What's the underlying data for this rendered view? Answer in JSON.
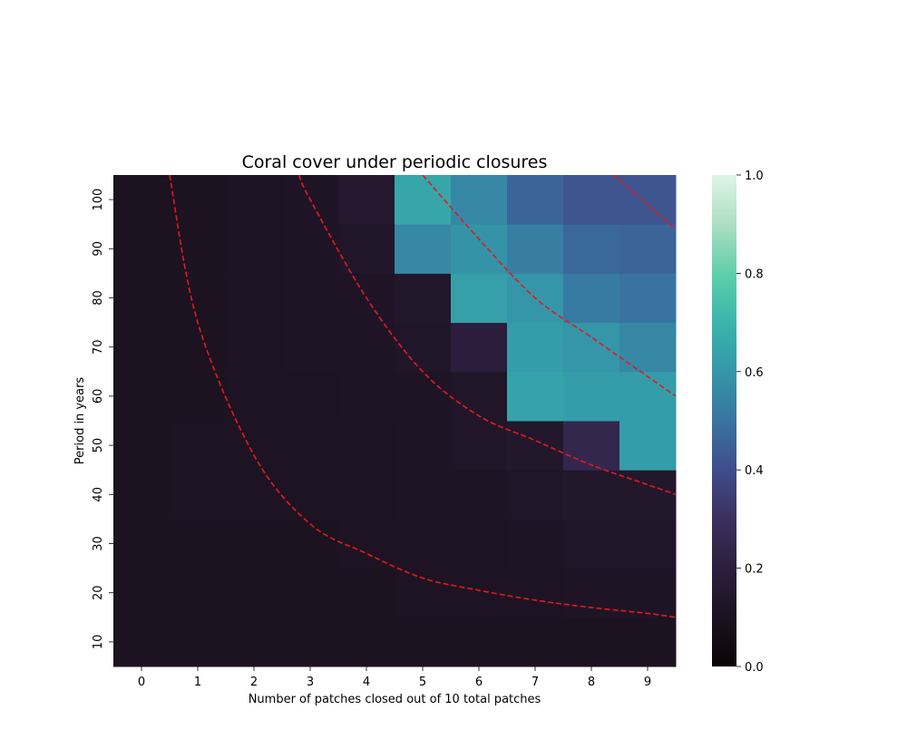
{
  "chart_data": {
    "type": "heatmap",
    "title": "Coral cover under periodic closures",
    "xlabel": "Number of patches closed out of 10 total patches",
    "ylabel": "Period in years",
    "x_categories": [
      "0",
      "1",
      "2",
      "3",
      "4",
      "5",
      "6",
      "7",
      "8",
      "9"
    ],
    "y_categories": [
      "10",
      "20",
      "30",
      "40",
      "50",
      "60",
      "70",
      "80",
      "90",
      "100"
    ],
    "values": [
      [
        0.1,
        0.1,
        0.1,
        0.1,
        0.1,
        0.1,
        0.1,
        0.1,
        0.1,
        0.1
      ],
      [
        0.1,
        0.1,
        0.1,
        0.1,
        0.1,
        0.11,
        0.11,
        0.11,
        0.12,
        0.12
      ],
      [
        0.1,
        0.1,
        0.1,
        0.1,
        0.11,
        0.11,
        0.11,
        0.12,
        0.13,
        0.13
      ],
      [
        0.1,
        0.11,
        0.11,
        0.11,
        0.11,
        0.12,
        0.12,
        0.13,
        0.14,
        0.14
      ],
      [
        0.1,
        0.11,
        0.11,
        0.11,
        0.11,
        0.12,
        0.13,
        0.14,
        0.25,
        0.62
      ],
      [
        0.1,
        0.1,
        0.11,
        0.11,
        0.12,
        0.12,
        0.13,
        0.64,
        0.62,
        0.62
      ],
      [
        0.1,
        0.1,
        0.11,
        0.12,
        0.12,
        0.13,
        0.19,
        0.62,
        0.6,
        0.56
      ],
      [
        0.1,
        0.1,
        0.11,
        0.12,
        0.12,
        0.14,
        0.63,
        0.6,
        0.52,
        0.5
      ],
      [
        0.1,
        0.1,
        0.11,
        0.12,
        0.13,
        0.56,
        0.59,
        0.53,
        0.47,
        0.46
      ],
      [
        0.1,
        0.1,
        0.11,
        0.12,
        0.15,
        0.65,
        0.56,
        0.46,
        0.42,
        0.42
      ]
    ],
    "colorbar": {
      "min": 0.0,
      "max": 1.0,
      "ticks": [
        "0.0",
        "0.2",
        "0.4",
        "0.6",
        "0.8",
        "1.0"
      ]
    },
    "colorscale": "mako",
    "reference_curves": [
      {
        "color": "#e41a1c",
        "style": "dashed",
        "x": [
          0.5,
          1,
          2,
          3,
          4,
          5,
          6,
          7,
          8,
          9,
          9.5
        ],
        "y": [
          105,
          75,
          48,
          34,
          28,
          23,
          20.5,
          18.5,
          17,
          15.8,
          15
        ]
      },
      {
        "color": "#e41a1c",
        "style": "dashed",
        "x": [
          2.8,
          3,
          4,
          5,
          6,
          7,
          8,
          9,
          9.5
        ],
        "y": [
          105,
          100,
          80,
          65,
          56,
          51,
          46,
          42,
          40
        ]
      },
      {
        "color": "#e41a1c",
        "style": "dashed",
        "x": [
          5.0,
          6,
          7,
          8,
          9,
          9.5
        ],
        "y": [
          105,
          92,
          80,
          72,
          64,
          60
        ]
      },
      {
        "color": "#e41a1c",
        "style": "dashed",
        "x": [
          8.4,
          9,
          9.5
        ],
        "y": [
          105,
          99,
          94
        ]
      }
    ]
  }
}
